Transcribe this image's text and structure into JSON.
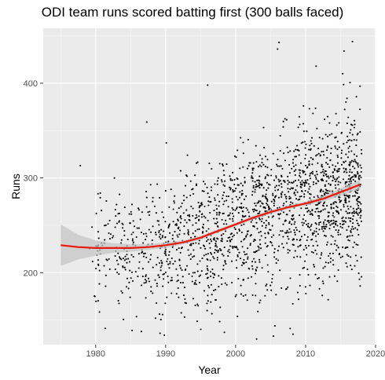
{
  "chart_data": {
    "type": "scatter",
    "title": "ODI team runs scored batting first (300 balls faced)",
    "xlabel": "Year",
    "ylabel": "Runs",
    "xlim": [
      1972.5,
      2020
    ],
    "ylim": [
      124,
      458
    ],
    "x_ticks": [
      1980,
      1990,
      2000,
      2010,
      2020
    ],
    "x_tick_labels": [
      "1980",
      "1990",
      "2000",
      "2010",
      "2020"
    ],
    "y_ticks": [
      200,
      300,
      400
    ],
    "y_tick_labels": [
      "200",
      "300",
      "400"
    ],
    "grid": true,
    "colors": {
      "panel": "#ebebeb",
      "grid_major": "#ffffff",
      "points": "#000000",
      "trend": "#e8190a",
      "band": "#c4c4c4"
    },
    "trend": {
      "x": [
        1975,
        1977.5,
        1980,
        1982.5,
        1985,
        1987.5,
        1990,
        1992.5,
        1995,
        1997.5,
        2000,
        2002.5,
        2005,
        2007.5,
        2010,
        2012.5,
        2015,
        2017.8
      ],
      "y": [
        229,
        227,
        226,
        226,
        226,
        227,
        229,
        232,
        237,
        244,
        251,
        258,
        264,
        269,
        273,
        278,
        285,
        293
      ],
      "lower": [
        207,
        214,
        218,
        221,
        222,
        224,
        226,
        230,
        235,
        242,
        249,
        256,
        262,
        267,
        271,
        275,
        281,
        288
      ],
      "upper": [
        251,
        240,
        234,
        231,
        230,
        230,
        232,
        234,
        239,
        246,
        253,
        260,
        266,
        271,
        275,
        281,
        289,
        298
      ]
    },
    "points": {
      "notable": [
        [
          1977.8,
          313
        ],
        [
          1979.9,
          175
        ],
        [
          1985.2,
          139
        ],
        [
          1989.2,
          136
        ],
        [
          1989.8,
          134
        ],
        [
          1990.1,
          337
        ],
        [
          1987.3,
          359
        ],
        [
          1996.0,
          398
        ],
        [
          1998.4,
          137
        ],
        [
          2005.4,
          133
        ],
        [
          2008.2,
          135
        ],
        [
          2003.0,
          130
        ],
        [
          2006.2,
          443
        ],
        [
          2006.0,
          436
        ],
        [
          2011.5,
          418
        ],
        [
          2016.7,
          444
        ],
        [
          2015.5,
          434
        ],
        [
          2015.3,
          410
        ],
        [
          2009.7,
          376
        ],
        [
          2017.8,
          186
        ],
        [
          2017.7,
          193
        ]
      ],
      "generated": {
        "count": 1880,
        "x_range": [
          1979,
          2018
        ],
        "spread_sd": 43,
        "y_range": [
          133,
          445
        ]
      }
    }
  }
}
